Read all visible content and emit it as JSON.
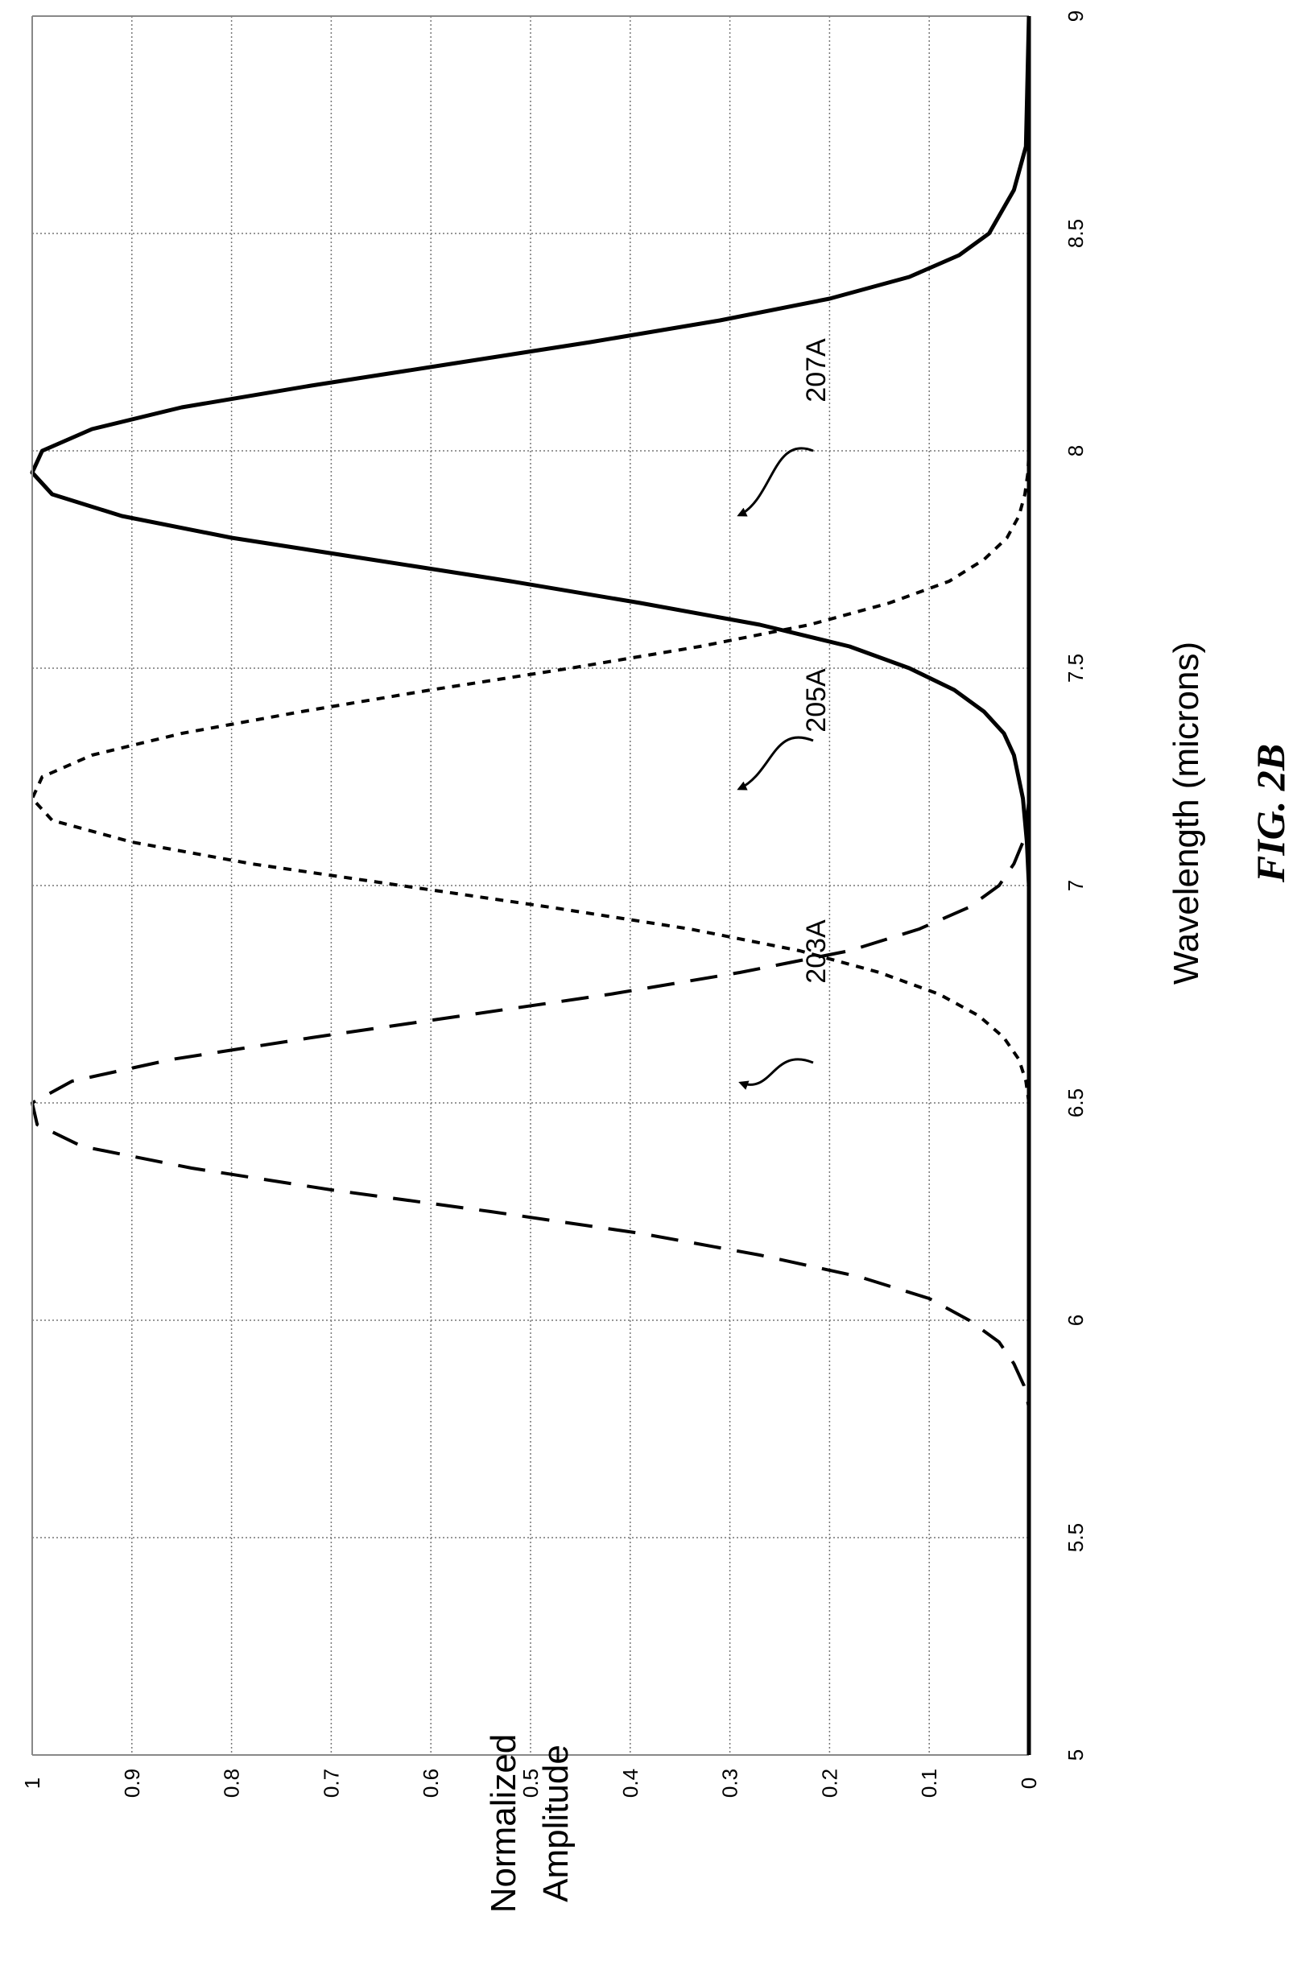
{
  "chart_data": {
    "type": "line",
    "xlabel": "Wavelength (microns)",
    "ylabel": "Normalized Amplitude",
    "caption": "FIG. 2B",
    "xlim": [
      5,
      9
    ],
    "ylim": [
      0,
      1
    ],
    "xticks": [
      "5",
      "5.5",
      "6",
      "6.5",
      "7",
      "7.5",
      "8",
      "8.5",
      "9"
    ],
    "yticks": [
      "0",
      "0.1",
      "0.2",
      "0.3",
      "0.4",
      "0.5",
      "0.6",
      "0.7",
      "0.8",
      "0.9",
      "1"
    ],
    "grid": true,
    "series": [
      {
        "name": "203A",
        "style": "long-dash",
        "x": [
          5.75,
          5.8,
          5.85,
          5.9,
          5.95,
          6.0,
          6.05,
          6.1,
          6.15,
          6.2,
          6.25,
          6.3,
          6.35,
          6.4,
          6.45,
          6.5,
          6.55,
          6.6,
          6.65,
          6.7,
          6.75,
          6.8,
          6.85,
          6.9,
          6.95,
          7.0,
          7.05,
          7.1,
          7.15,
          7.2,
          7.25,
          9.0
        ],
        "y": [
          0.0,
          0.0,
          0.005,
          0.015,
          0.03,
          0.06,
          0.1,
          0.17,
          0.27,
          0.39,
          0.54,
          0.7,
          0.84,
          0.95,
          0.995,
          1.0,
          0.96,
          0.86,
          0.72,
          0.57,
          0.42,
          0.29,
          0.18,
          0.11,
          0.06,
          0.03,
          0.015,
          0.006,
          0.002,
          0.0,
          0.0,
          0.0
        ]
      },
      {
        "name": "205A",
        "style": "short-dash",
        "x": [
          6.5,
          6.55,
          6.6,
          6.65,
          6.7,
          6.75,
          6.8,
          6.85,
          6.9,
          6.95,
          7.0,
          7.05,
          7.1,
          7.15,
          7.2,
          7.25,
          7.3,
          7.35,
          7.4,
          7.45,
          7.5,
          7.55,
          7.6,
          7.65,
          7.7,
          7.75,
          7.8,
          7.85,
          7.9,
          7.95,
          8.0
        ],
        "y": [
          0.0,
          0.003,
          0.01,
          0.025,
          0.05,
          0.09,
          0.15,
          0.23,
          0.34,
          0.48,
          0.63,
          0.78,
          0.9,
          0.98,
          1.0,
          0.99,
          0.94,
          0.85,
          0.73,
          0.6,
          0.46,
          0.33,
          0.22,
          0.14,
          0.08,
          0.045,
          0.022,
          0.01,
          0.004,
          0.001,
          0.0
        ]
      },
      {
        "name": "207A",
        "style": "solid",
        "x": [
          5.0,
          7.0,
          7.1,
          7.2,
          7.3,
          7.35,
          7.4,
          7.45,
          7.5,
          7.55,
          7.6,
          7.65,
          7.7,
          7.75,
          7.8,
          7.85,
          7.9,
          7.95,
          8.0,
          8.05,
          8.1,
          8.15,
          8.2,
          8.25,
          8.3,
          8.35,
          8.4,
          8.45,
          8.5,
          8.6,
          8.7,
          9.0
        ],
        "y": [
          0.0,
          0.0,
          0.002,
          0.006,
          0.015,
          0.025,
          0.045,
          0.075,
          0.12,
          0.18,
          0.27,
          0.39,
          0.52,
          0.66,
          0.8,
          0.91,
          0.98,
          1.0,
          0.99,
          0.94,
          0.85,
          0.72,
          0.58,
          0.44,
          0.31,
          0.2,
          0.12,
          0.07,
          0.04,
          0.015,
          0.003,
          0.0
        ]
      }
    ],
    "annotations": [
      {
        "label": "203A",
        "series": "203A"
      },
      {
        "label": "205A",
        "series": "205A"
      },
      {
        "label": "207A",
        "series": "207A"
      }
    ]
  }
}
